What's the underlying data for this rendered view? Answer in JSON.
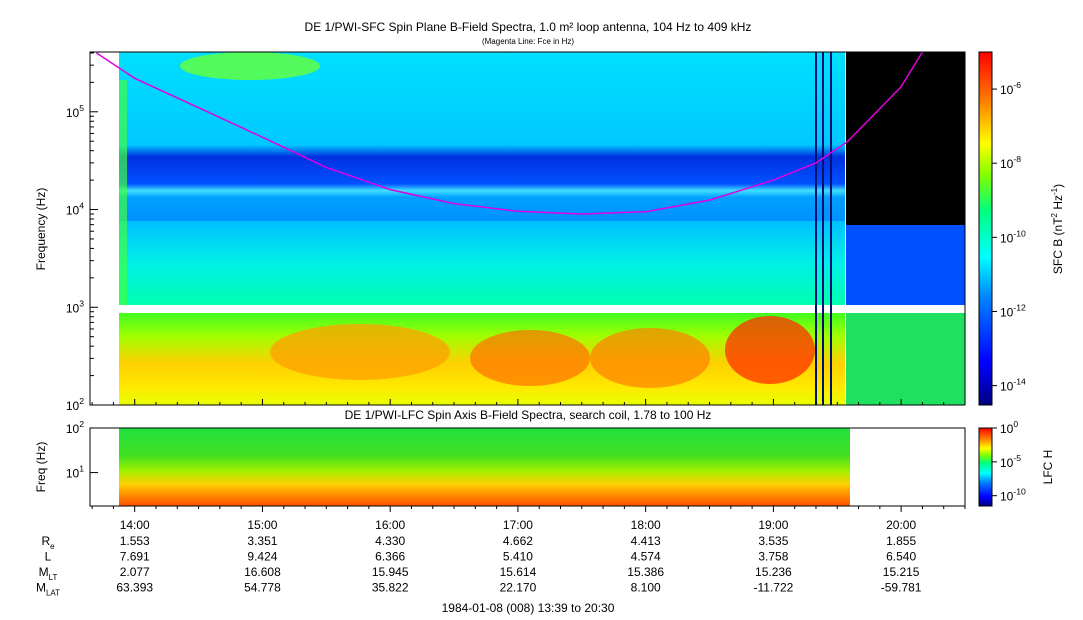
{
  "chart_data": [
    {
      "type": "heatmap",
      "title": "DE 1/PWI-SFC  Spin Plane B-Field Spectra, 1.0 m² loop antenna, 104 Hz to 409 kHz",
      "subtitle": "(Magenta Line: Fce in Hz)",
      "ylabel": "Frequency (Hz)",
      "yscale": "log",
      "ylim": [
        100,
        409000
      ],
      "yticks": [
        {
          "value": 100,
          "label": "10",
          "exp": "2"
        },
        {
          "value": 1000,
          "label": "10",
          "exp": "3"
        },
        {
          "value": 10000,
          "label": "10",
          "exp": "4"
        },
        {
          "value": 100000,
          "label": "10",
          "exp": "5"
        }
      ],
      "colorbar": {
        "label_pre": "SFC B (nT",
        "label_exp1": "2",
        "label_mid": " Hz",
        "label_exp2": "-1",
        "label_post": ")",
        "scale": "log",
        "range": [
          3e-15,
          1e-05
        ],
        "ticks": [
          {
            "value": 1e-06,
            "label": "10",
            "exp": "-6"
          },
          {
            "value": 1e-08,
            "label": "10",
            "exp": "-8"
          },
          {
            "value": 1e-10,
            "label": "10",
            "exp": "-10"
          },
          {
            "value": 1e-12,
            "label": "10",
            "exp": "-12"
          },
          {
            "value": 1e-14,
            "label": "10",
            "exp": "-14"
          }
        ]
      },
      "series": [
        {
          "name": "Fce",
          "color": "#e000e0",
          "x": [
            "13:42",
            "14:00",
            "14:30",
            "15:00",
            "15:30",
            "16:00",
            "16:30",
            "17:00",
            "17:30",
            "18:00",
            "18:30",
            "19:00",
            "19:20",
            "19:35",
            "20:00",
            "20:10"
          ],
          "y": [
            400000,
            220000,
            110000,
            55000,
            27000,
            16000,
            11500,
            9600,
            9000,
            9500,
            12500,
            20000,
            30000,
            50000,
            180000,
            409000
          ]
        }
      ]
    },
    {
      "type": "heatmap",
      "title": "DE 1/PWI-LFC  Spin Axis B-Field Spectra, search coil, 1.78 to 100 Hz",
      "ylabel": "Freq (Hz)",
      "yscale": "log",
      "ylim": [
        1.78,
        100
      ],
      "yticks": [
        {
          "value": 10,
          "label": "10",
          "exp": "1"
        },
        {
          "value": 100,
          "label": "10",
          "exp": "2"
        }
      ],
      "colorbar": {
        "label": "LFC H",
        "scale": "log",
        "range": [
          3e-12,
          1
        ],
        "ticks": [
          {
            "value": 1,
            "label": "10",
            "exp": "0"
          },
          {
            "value": 1e-05,
            "label": "10",
            "exp": "-5"
          },
          {
            "value": 1e-10,
            "label": "10",
            "exp": "-10"
          }
        ]
      }
    }
  ],
  "time_axis": {
    "range": [
      "13:39",
      "20:30"
    ],
    "tick_labels": [
      "14:00",
      "15:00",
      "16:00",
      "17:00",
      "18:00",
      "19:00",
      "20:00"
    ],
    "footer": "1984-01-08 (008) 13:39 to 20:30"
  },
  "ephemeris": [
    {
      "label": "R",
      "sub": "e",
      "values": [
        "1.553",
        "3.351",
        "4.330",
        "4.662",
        "4.413",
        "3.535",
        "1.855"
      ]
    },
    {
      "label": "L",
      "sub": "",
      "values": [
        "7.691",
        "9.424",
        "6.366",
        "5.410",
        "4.574",
        "3.758",
        "6.540"
      ]
    },
    {
      "label": "M",
      "sub": "LT",
      "values": [
        "2.077",
        "16.608",
        "15.945",
        "15.614",
        "15.386",
        "15.236",
        "15.215"
      ]
    },
    {
      "label": "M",
      "sub": "LAT",
      "values": [
        "63.393",
        "54.778",
        "35.822",
        "22.170",
        "8.100",
        "-11.722",
        "-59.781"
      ]
    }
  ]
}
